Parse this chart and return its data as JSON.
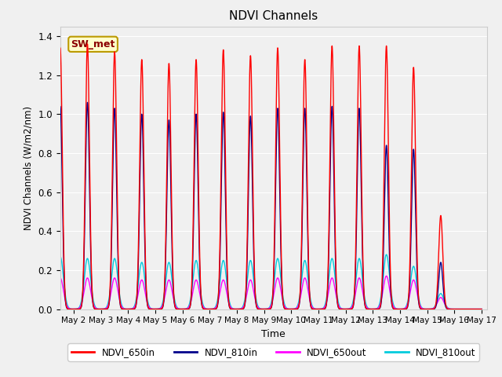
{
  "title": "NDVI Channels",
  "xlabel": "Time",
  "ylabel": "NDVI Channels (W/m2/nm)",
  "ylim": [
    0,
    1.45
  ],
  "xlim_days": [
    1.5,
    17.2
  ],
  "figure_facecolor": "#f0f0f0",
  "plot_bg_color": "#f0f0f0",
  "grid_color": "white",
  "legend_label": "SW_met",
  "legend_text_color": "#8b0000",
  "legend_box_facecolor": "#ffffcc",
  "legend_box_edgecolor": "#bb9900",
  "lines": [
    {
      "label": "NDVI_650in",
      "color": "#ff0000",
      "lw": 1.0,
      "zorder": 4
    },
    {
      "label": "NDVI_810in",
      "color": "#00008b",
      "lw": 1.0,
      "zorder": 3
    },
    {
      "label": "NDVI_650out",
      "color": "#ff00ff",
      "lw": 1.0,
      "zorder": 2
    },
    {
      "label": "NDVI_810out",
      "color": "#00ccdd",
      "lw": 1.0,
      "zorder": 1
    }
  ],
  "num_days": 16,
  "start_day": 1,
  "day_labels": [
    "May 2",
    "May 3",
    "May 4",
    "May 5",
    "May 6",
    "May 7",
    "May 8",
    "May 9",
    "May 10",
    "May 11",
    "May 12",
    "May 13",
    "May 14",
    "May 15",
    "May 16",
    "May 17"
  ],
  "day_tick_positions": [
    2,
    3,
    4,
    5,
    6,
    7,
    8,
    9,
    10,
    11,
    12,
    13,
    14,
    15,
    16,
    17
  ],
  "peaks_650in": [
    1.34,
    1.36,
    1.32,
    1.28,
    1.26,
    1.28,
    1.33,
    1.3,
    1.34,
    1.28,
    1.35,
    1.35,
    1.35,
    1.24,
    0.48,
    0.0
  ],
  "peaks_810in": [
    1.04,
    1.06,
    1.03,
    1.0,
    0.97,
    1.0,
    1.01,
    0.99,
    1.03,
    1.03,
    1.04,
    1.03,
    0.84,
    0.82,
    0.24,
    0.0
  ],
  "peaks_650out": [
    0.16,
    0.16,
    0.16,
    0.15,
    0.15,
    0.15,
    0.15,
    0.15,
    0.16,
    0.16,
    0.16,
    0.16,
    0.17,
    0.15,
    0.06,
    0.0
  ],
  "peaks_810out": [
    0.27,
    0.26,
    0.26,
    0.24,
    0.24,
    0.25,
    0.25,
    0.25,
    0.26,
    0.25,
    0.26,
    0.26,
    0.28,
    0.22,
    0.08,
    0.0
  ],
  "sigma_in_hours": 1.8,
  "sigma_out_hours": 2.8,
  "points_per_day": 1000
}
